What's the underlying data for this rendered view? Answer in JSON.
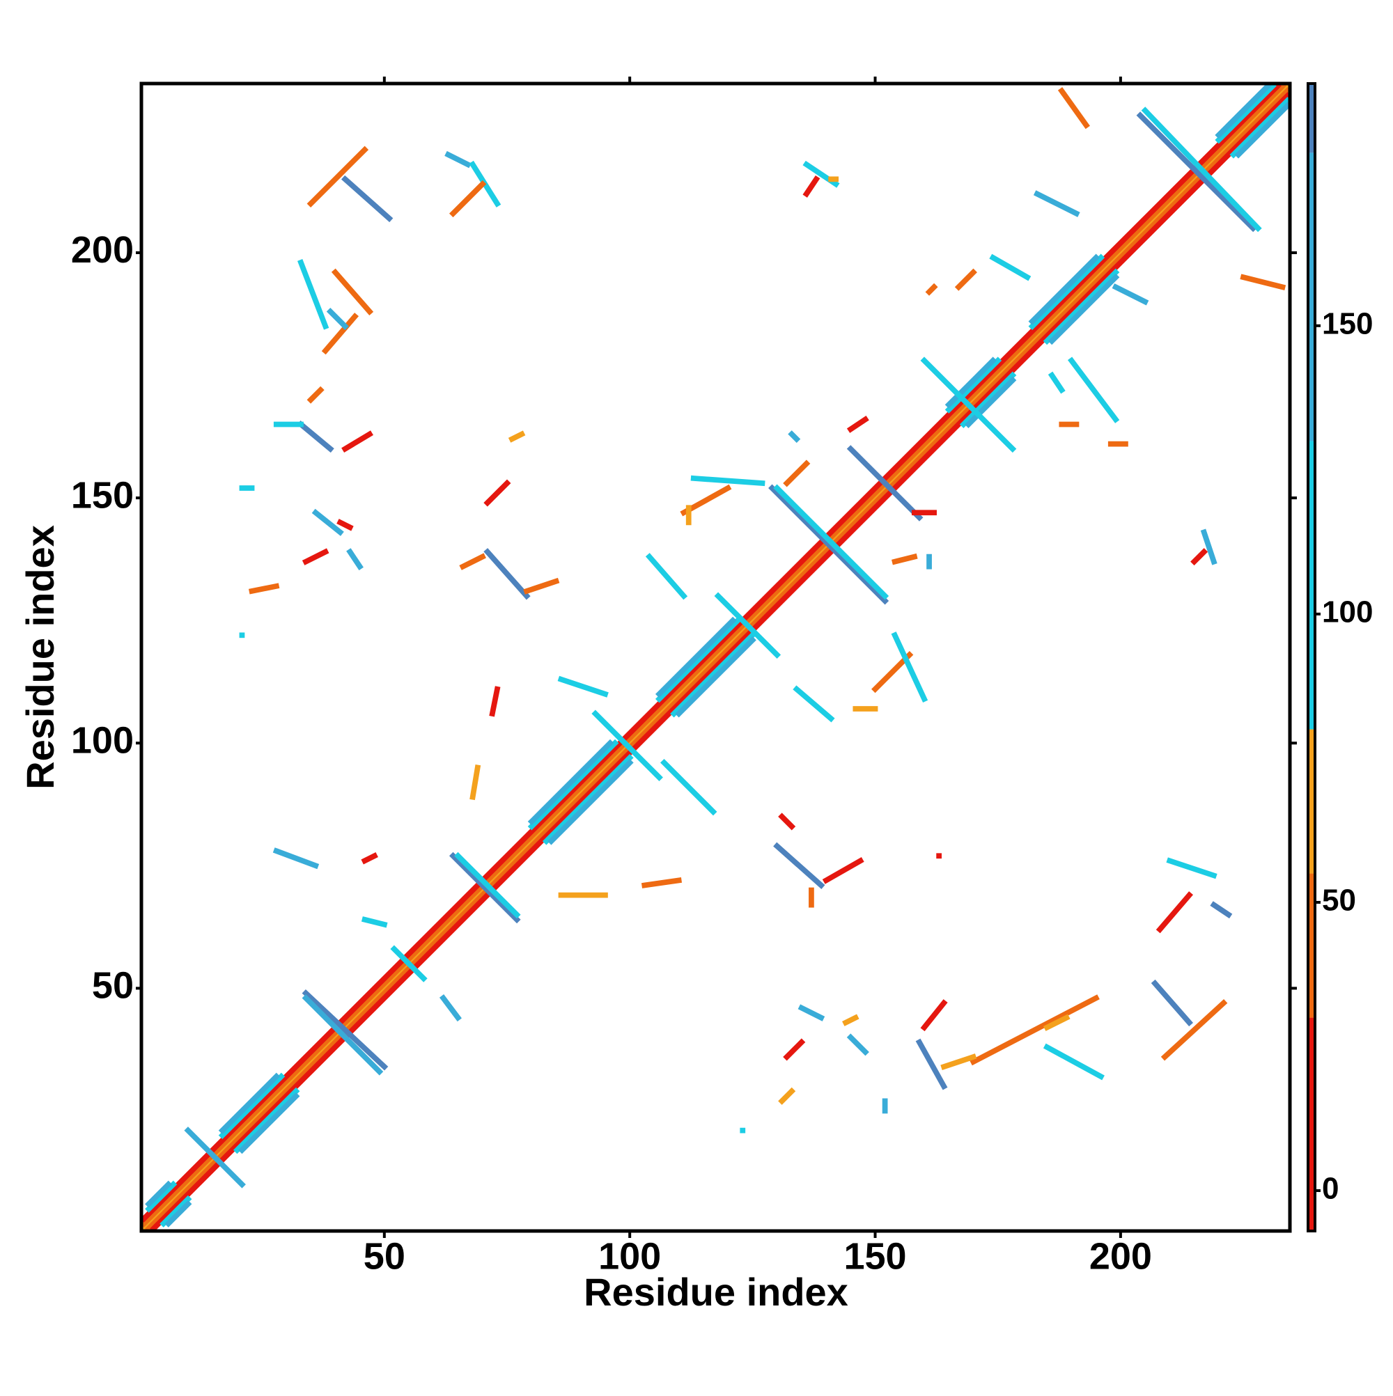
{
  "chart_data": {
    "type": "contact-map",
    "x_label": "Residue index",
    "y_label": "Residue index",
    "xlim": [
      0.5,
      234.5
    ],
    "ylim": [
      0.5,
      234.5
    ],
    "xticks": [
      50,
      100,
      150,
      200
    ],
    "yticks": [
      50,
      100,
      150,
      200
    ],
    "colorbar": {
      "lim": [
        -7,
        192
      ],
      "ticks": [
        0,
        50,
        100,
        150
      ],
      "bands": [
        {
          "from": -7,
          "to": 30,
          "color": "#e5170f"
        },
        {
          "from": 30,
          "to": 55,
          "color": "#ee6a12"
        },
        {
          "from": 55,
          "to": 80,
          "color": "#f4a11d"
        },
        {
          "from": 80,
          "to": 130,
          "color": "#1ccde4"
        },
        {
          "from": 130,
          "to": 180,
          "color": "#39acd8"
        },
        {
          "from": 180,
          "to": 192,
          "color": "#4d82bd"
        }
      ]
    },
    "segments": [
      [
        1,
        1,
        234,
        234,
        70
      ],
      [
        2,
        1,
        234,
        233,
        45
      ],
      [
        1,
        2,
        233,
        234,
        45
      ],
      [
        3,
        1,
        234,
        232,
        10
      ],
      [
        1,
        3,
        232,
        234,
        10
      ],
      [
        5,
        2,
        10,
        7,
        100
      ],
      [
        2,
        5,
        7,
        10,
        100
      ],
      [
        6,
        2,
        10,
        6,
        150
      ],
      [
        2,
        6,
        6,
        10,
        150
      ],
      [
        20,
        17,
        32,
        29,
        100
      ],
      [
        17,
        20,
        29,
        32,
        100
      ],
      [
        21,
        17,
        32,
        28,
        150
      ],
      [
        17,
        21,
        28,
        32,
        150
      ],
      [
        83,
        80,
        100,
        97,
        100
      ],
      [
        80,
        83,
        97,
        100,
        100
      ],
      [
        84,
        80,
        100,
        96,
        150
      ],
      [
        80,
        84,
        96,
        100,
        150
      ],
      [
        109,
        106,
        125,
        122,
        100
      ],
      [
        106,
        109,
        122,
        125,
        100
      ],
      [
        110,
        106,
        125,
        121,
        150
      ],
      [
        106,
        110,
        121,
        125,
        150
      ],
      [
        168,
        165,
        178,
        175,
        100
      ],
      [
        165,
        168,
        175,
        178,
        100
      ],
      [
        169,
        165,
        178,
        174,
        150
      ],
      [
        165,
        169,
        174,
        178,
        150
      ],
      [
        185,
        182,
        199,
        196,
        100
      ],
      [
        182,
        185,
        196,
        199,
        100
      ],
      [
        186,
        182,
        199,
        195,
        150
      ],
      [
        182,
        186,
        195,
        199,
        150
      ],
      [
        223,
        220,
        234,
        231,
        100
      ],
      [
        220,
        223,
        231,
        234,
        100
      ],
      [
        224,
        220,
        234,
        230,
        150
      ],
      [
        220,
        224,
        230,
        234,
        150
      ],
      [
        34,
        49,
        50,
        34,
        185
      ],
      [
        34,
        48,
        49,
        33,
        150
      ],
      [
        64,
        77,
        77,
        64,
        185
      ],
      [
        65,
        77,
        77,
        65,
        100
      ],
      [
        10,
        21,
        21,
        10,
        150
      ],
      [
        52,
        58,
        58,
        52,
        100
      ],
      [
        129,
        152,
        152,
        129,
        185
      ],
      [
        130,
        152,
        152,
        130,
        100
      ],
      [
        145,
        160,
        159,
        146,
        185
      ],
      [
        204,
        228,
        227,
        205,
        185
      ],
      [
        205,
        229,
        228,
        205,
        100
      ],
      [
        93,
        106,
        106,
        93,
        100
      ],
      [
        118,
        130,
        130,
        118,
        100
      ],
      [
        160,
        178,
        178,
        160,
        100
      ],
      [
        42,
        215,
        51,
        207,
        185
      ],
      [
        35,
        210,
        46,
        221,
        45
      ],
      [
        63,
        220,
        67,
        218,
        150
      ],
      [
        68,
        218,
        73,
        210,
        100
      ],
      [
        64,
        208,
        70,
        214,
        45
      ],
      [
        33,
        198,
        38,
        185,
        100
      ],
      [
        40,
        196,
        47,
        188,
        45
      ],
      [
        38,
        180,
        44,
        187,
        45
      ],
      [
        39,
        188,
        42,
        185,
        150
      ],
      [
        35,
        170,
        37,
        172,
        45
      ],
      [
        33,
        165,
        39,
        160,
        185
      ],
      [
        28,
        165,
        33,
        165,
        100
      ],
      [
        42,
        160,
        47,
        163,
        10
      ],
      [
        21,
        152,
        23,
        152,
        100
      ],
      [
        36,
        147,
        41,
        143,
        150
      ],
      [
        41,
        145,
        43,
        144,
        10
      ],
      [
        34,
        137,
        38,
        139,
        10
      ],
      [
        43,
        139,
        45,
        136,
        150
      ],
      [
        23,
        131,
        28,
        132,
        45
      ],
      [
        21,
        122,
        21,
        122,
        100
      ],
      [
        28,
        78,
        36,
        75,
        150
      ],
      [
        46,
        76,
        48,
        77,
        10
      ],
      [
        71,
        139,
        79,
        130,
        185
      ],
      [
        66,
        136,
        70,
        138,
        45
      ],
      [
        79,
        131,
        85,
        133,
        45
      ],
      [
        71,
        149,
        75,
        153,
        10
      ],
      [
        76,
        162,
        78,
        163,
        70
      ],
      [
        72,
        106,
        73,
        111,
        10
      ],
      [
        68,
        89,
        69,
        95,
        70
      ],
      [
        46,
        64,
        50,
        63,
        100
      ],
      [
        62,
        48,
        65,
        44,
        150
      ],
      [
        86,
        113,
        95,
        110,
        100
      ],
      [
        104,
        138,
        111,
        130,
        100
      ],
      [
        111,
        147,
        120,
        152,
        45
      ],
      [
        113,
        154,
        127,
        153,
        100
      ],
      [
        112,
        145,
        112,
        148,
        70
      ],
      [
        86,
        69,
        95,
        69,
        70
      ],
      [
        103,
        71,
        110,
        72,
        45
      ],
      [
        107,
        96,
        117,
        86,
        100
      ],
      [
        131,
        85,
        133,
        83,
        10
      ],
      [
        130,
        79,
        139,
        71,
        185
      ],
      [
        140,
        72,
        147,
        76,
        10
      ],
      [
        137,
        67,
        137,
        70,
        45
      ],
      [
        163,
        77,
        163,
        77,
        10
      ],
      [
        134,
        111,
        141,
        105,
        100
      ],
      [
        146,
        107,
        150,
        107,
        70
      ],
      [
        150,
        111,
        157,
        118,
        45
      ],
      [
        154,
        122,
        160,
        109,
        100
      ],
      [
        158,
        147,
        162,
        147,
        10
      ],
      [
        161,
        138,
        161,
        136,
        150
      ],
      [
        145,
        164,
        148,
        166,
        10
      ],
      [
        154,
        137,
        158,
        138,
        45
      ],
      [
        133,
        163,
        134,
        162,
        150
      ],
      [
        132,
        153,
        136,
        157,
        45
      ],
      [
        136,
        218,
        142,
        214,
        100
      ],
      [
        136,
        212,
        138,
        215,
        10
      ],
      [
        141,
        215,
        142,
        215,
        70
      ],
      [
        174,
        199,
        181,
        195,
        100
      ],
      [
        167,
        193,
        170,
        196,
        45
      ],
      [
        183,
        212,
        191,
        208,
        150
      ],
      [
        190,
        178,
        199,
        166,
        100
      ],
      [
        188,
        165,
        191,
        165,
        45
      ],
      [
        186,
        175,
        188,
        172,
        100
      ],
      [
        199,
        193,
        205,
        190,
        150
      ],
      [
        225,
        195,
        233,
        193,
        45
      ],
      [
        188,
        233,
        193,
        226,
        45
      ],
      [
        210,
        76,
        219,
        73,
        100
      ],
      [
        219,
        67,
        222,
        65,
        185
      ],
      [
        208,
        62,
        214,
        69,
        10
      ],
      [
        207,
        51,
        214,
        43,
        185
      ],
      [
        209,
        36,
        221,
        47,
        45
      ],
      [
        170,
        35,
        195,
        48,
        45
      ],
      [
        185,
        42,
        189,
        44,
        70
      ],
      [
        185,
        38,
        196,
        32,
        100
      ],
      [
        159,
        39,
        164,
        30,
        185
      ],
      [
        164,
        34,
        170,
        36,
        70
      ],
      [
        160,
        42,
        164,
        47,
        10
      ],
      [
        144,
        43,
        146,
        44,
        70
      ],
      [
        145,
        40,
        148,
        37,
        150
      ],
      [
        135,
        46,
        139,
        44,
        150
      ],
      [
        132,
        36,
        135,
        39,
        10
      ],
      [
        131,
        27,
        133,
        29,
        70
      ],
      [
        152,
        27,
        152,
        25,
        150
      ],
      [
        123,
        21,
        123,
        21,
        100
      ],
      [
        215,
        137,
        217,
        139,
        10
      ],
      [
        217,
        143,
        219,
        137,
        150
      ],
      [
        198,
        161,
        201,
        161,
        45
      ],
      [
        161,
        192,
        162,
        193,
        45
      ]
    ]
  }
}
